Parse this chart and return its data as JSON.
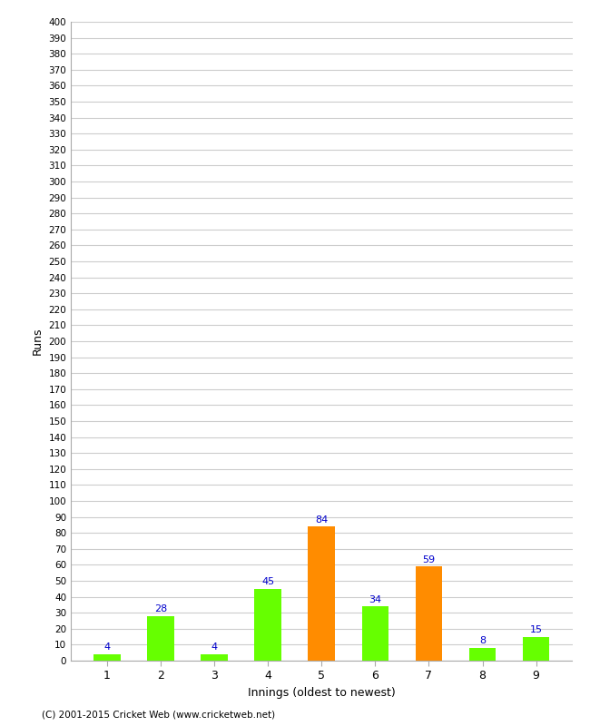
{
  "xlabel": "Innings (oldest to newest)",
  "ylabel": "Runs",
  "categories": [
    "1",
    "2",
    "3",
    "4",
    "5",
    "6",
    "7",
    "8",
    "9"
  ],
  "values": [
    4,
    28,
    4,
    45,
    84,
    34,
    59,
    8,
    15
  ],
  "bar_colors": [
    "#66ff00",
    "#66ff00",
    "#66ff00",
    "#66ff00",
    "#ff8c00",
    "#66ff00",
    "#ff8c00",
    "#66ff00",
    "#66ff00"
  ],
  "ylim": [
    0,
    400
  ],
  "ytick_step": 10,
  "label_color": "#0000cc",
  "grid_color": "#cccccc",
  "background_color": "#ffffff",
  "footer": "(C) 2001-2015 Cricket Web (www.cricketweb.net)",
  "bar_width": 0.5,
  "fig_width": 6.5,
  "fig_height": 8.0,
  "dpi": 100
}
